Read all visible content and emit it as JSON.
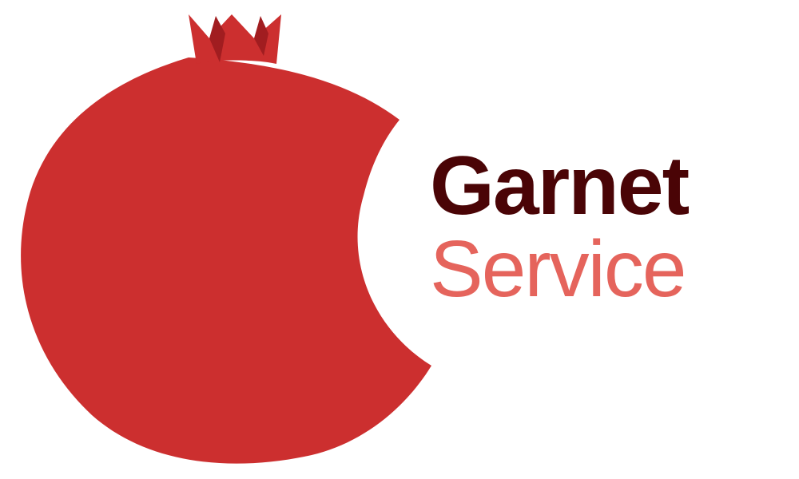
{
  "logo": {
    "icon": "pomegranate-icon",
    "fruit_color": "#cc2f2f",
    "crown_shadow_color": "#a11d20",
    "background_color": "#ffffff"
  },
  "wordmark": {
    "name": "Garnet",
    "name_color": "#4a0406",
    "tagline": "Service",
    "tagline_color": "#e5645c"
  }
}
